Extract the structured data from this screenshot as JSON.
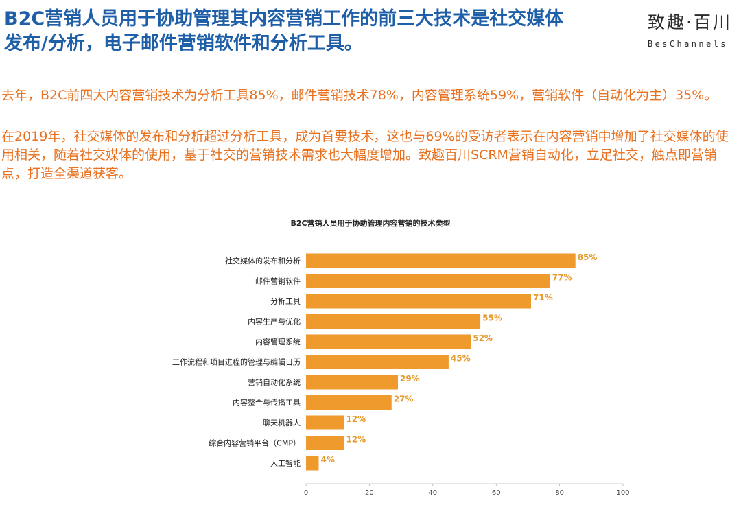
{
  "headline": "B2C营销人员用于协助管理其内容营销工作的前三大技术是社交媒体\n发布/分析，电子邮件营销软件和分析工具。",
  "logo": {
    "cn": "致趣·百川",
    "en": "BesChannels"
  },
  "paragraphs": [
    "去年，B2C前四大内容营销技术为分析工具85%，邮件营销技术78%，内容管理系统59%，营销软件（自动化为主）35%。",
    "在2019年，社交媒体的发布和分析超过分析工具，成为首要技术，这也与69%的受访者表示在内容营销中增加了社交媒体的使用相关，随着社交媒体的使用，基于社交的营销技术需求也大幅度增加。致趣百川SCRM营销自动化，立足社交，触点即营销点，打造全渠道获客。"
  ],
  "chart_data": {
    "type": "bar",
    "orientation": "horizontal",
    "title": "B2C营销人员用于协助管理内容营销的技术类型",
    "categories": [
      "社交媒体的发布和分析",
      "邮件营销软件",
      "分析工具",
      "内容生产与优化",
      "内容管理系统",
      "工作流程和项目进程的管理与编辑日历",
      "营销自动化系统",
      "内容整合与传播工具",
      "聊天机器人",
      "综合内容营销平台（CMP）",
      "人工智能"
    ],
    "values": [
      85,
      77,
      71,
      55,
      52,
      45,
      29,
      27,
      12,
      12,
      4
    ],
    "value_labels": [
      "85%",
      "77%",
      "71%",
      "55%",
      "52%",
      "45%",
      "29%",
      "27%",
      "12%",
      "12%",
      "4%"
    ],
    "xlim": [
      0,
      100
    ],
    "xticks": [
      0,
      20,
      40,
      60,
      80,
      100
    ],
    "xlabel": "",
    "ylabel": "",
    "grid": false,
    "bar_color": "#ee9a2c",
    "label_color": "#e59a2a"
  }
}
